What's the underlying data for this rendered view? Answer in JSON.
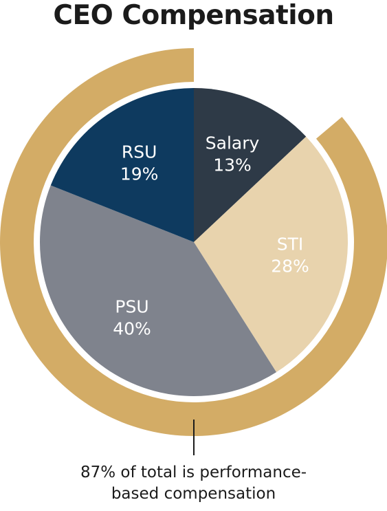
{
  "chart_data": {
    "type": "pie",
    "title": "CEO Compensation",
    "slices": [
      {
        "label": "Salary",
        "value": 13,
        "value_label": "13%",
        "color": "#2e3a47",
        "text_color": "#ffffff"
      },
      {
        "label": "STI",
        "value": 28,
        "value_label": "28%",
        "color": "#e8d3ad",
        "text_color": "#ffffff"
      },
      {
        "label": "PSU",
        "value": 40,
        "value_label": "40%",
        "color": "#7f838d",
        "text_color": "#ffffff"
      },
      {
        "label": "RSU",
        "value": 19,
        "value_label": "19%",
        "color": "#0e3a5f",
        "text_color": "#ffffff"
      }
    ],
    "performance_ring": {
      "value": 87,
      "color": "#d3ac66"
    },
    "annotation_lines": [
      "87% of total is performance-",
      "based compensation"
    ]
  }
}
